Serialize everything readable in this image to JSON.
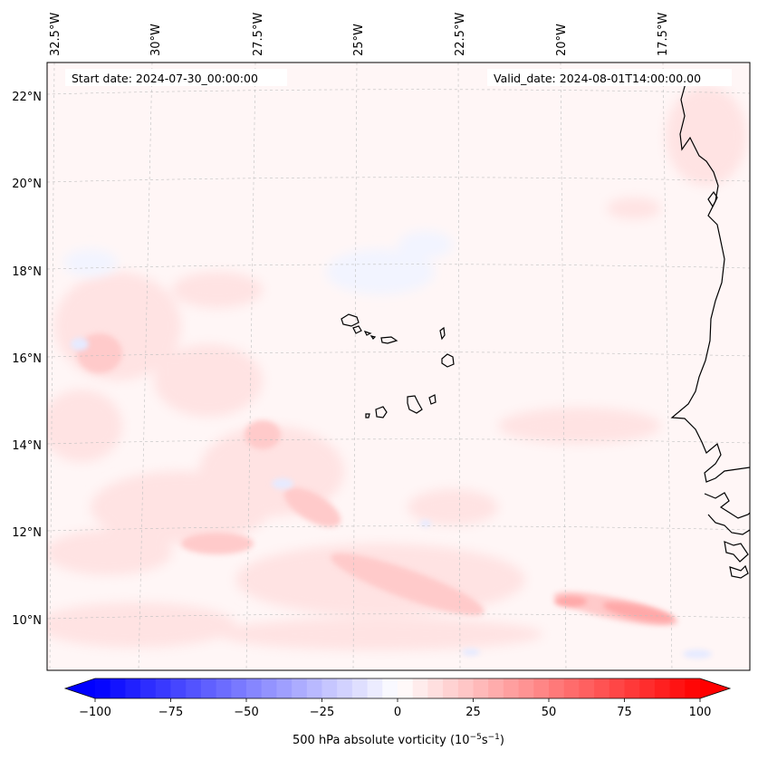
{
  "header": {
    "start_date": "Start date: 2024-07-30_00:00:00",
    "valid_date": "Valid_date: 2024-08-01T14:00:00.00"
  },
  "longitude_labels": [
    "32.5°W",
    "30°W",
    "27.5°W",
    "25°W",
    "22.5°W",
    "20°W",
    "17.5°W"
  ],
  "latitude_labels": [
    "22°N",
    "20°N",
    "18°N",
    "16°N",
    "14°N",
    "12°N",
    "10°N"
  ],
  "colorbar": {
    "label_main": "500 hPa absolute vorticity (10",
    "label_exp1": "−5",
    "label_mid": "s",
    "label_exp2": "−1",
    "label_end": ")",
    "tick_labels": [
      "−100",
      "−75",
      "−50",
      "−25",
      "0",
      "25",
      "50",
      "75",
      "100"
    ],
    "min": -100,
    "max": 100,
    "levels": 40,
    "cmap_low": "#0000ff",
    "cmap_mid": "#ffffff",
    "cmap_high": "#ff0000"
  },
  "map": {
    "coastline_color": "#000000",
    "gridline_color": "#bfbfbf"
  }
}
